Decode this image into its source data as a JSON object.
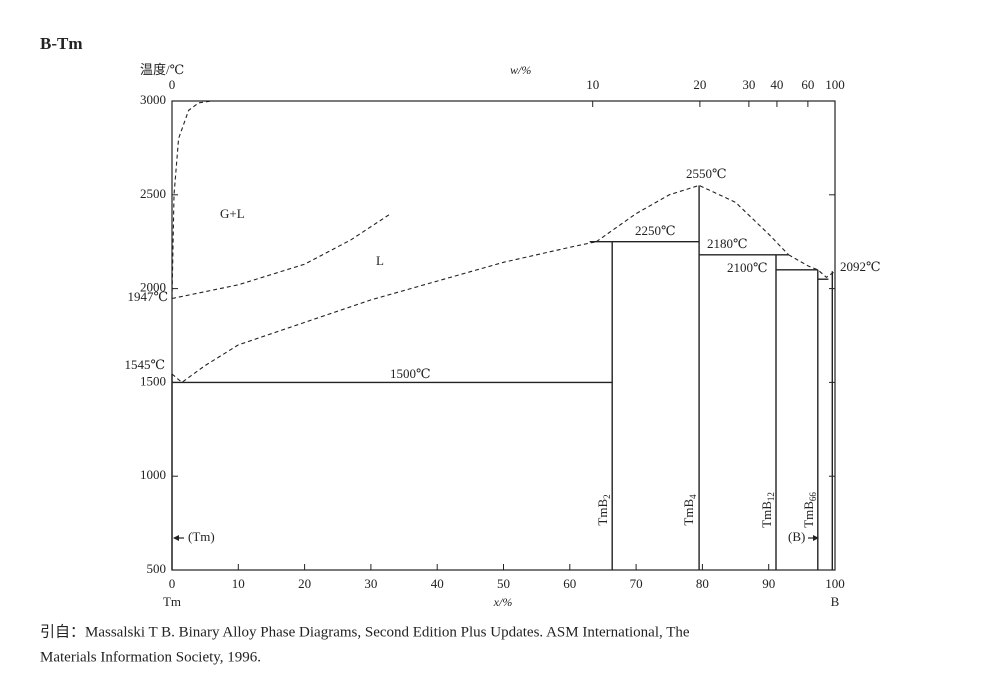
{
  "chart_data": {
    "type": "line",
    "title": "B-Tm",
    "y_label": "温度/℃",
    "x_label": "x/%",
    "top_label": "w/%",
    "x_left_label": "Tm",
    "x_right_label": "B",
    "xlim": [
      0,
      100
    ],
    "ylim": [
      500,
      3000
    ],
    "xticks": [
      0,
      10,
      20,
      30,
      40,
      50,
      60,
      70,
      80,
      90,
      100
    ],
    "yticks": [
      500,
      1000,
      1500,
      2000,
      2500,
      3000
    ],
    "top_xticks": [
      0,
      10,
      20,
      30,
      40,
      60,
      100
    ],
    "color": "#222222",
    "series": [
      {
        "style": "dashed",
        "x": [
          0,
          1.5,
          5,
          10,
          20,
          30,
          40,
          50,
          60,
          64
        ],
        "values": [
          1545,
          1500,
          1590,
          1700,
          1820,
          1940,
          2040,
          2140,
          2220,
          2250
        ]
      },
      {
        "style": "dashed",
        "x": [
          64,
          70,
          75,
          79.5,
          85,
          90,
          93
        ],
        "values": [
          2250,
          2400,
          2500,
          2550,
          2460,
          2290,
          2180
        ]
      },
      {
        "style": "dashed",
        "x": [
          93,
          96,
          97.4,
          98.7,
          100
        ],
        "values": [
          2180,
          2120,
          2100,
          2060,
          2092
        ]
      },
      {
        "style": "dashed",
        "x": [
          0,
          0.3,
          1,
          2.5,
          4,
          6
        ],
        "values": [
          1947,
          2500,
          2800,
          2950,
          2990,
          3000
        ]
      },
      {
        "style": "dashed",
        "x": [
          0,
          10,
          20,
          27,
          33
        ],
        "values": [
          1947,
          2020,
          2130,
          2260,
          2400
        ]
      },
      {
        "style": "solid",
        "x": [
          0,
          66.4
        ],
        "values": [
          1500,
          1500
        ]
      },
      {
        "style": "solid",
        "x": [
          63,
          79.5
        ],
        "values": [
          2250,
          2250
        ]
      },
      {
        "style": "solid",
        "x": [
          79.5,
          93
        ],
        "values": [
          2180,
          2180
        ]
      },
      {
        "style": "solid",
        "x": [
          91.1,
          97.4
        ],
        "values": [
          2100,
          2100
        ]
      },
      {
        "style": "solid",
        "x": [
          97.4,
          99
        ],
        "values": [
          2050,
          2050
        ]
      },
      {
        "style": "solid",
        "x": [
          66.4,
          66.4
        ],
        "values": [
          500,
          2250
        ]
      },
      {
        "style": "solid",
        "x": [
          79.5,
          79.5
        ],
        "values": [
          500,
          2550
        ]
      },
      {
        "style": "solid",
        "x": [
          91.1,
          91.1
        ],
        "values": [
          500,
          2180
        ]
      },
      {
        "style": "solid",
        "x": [
          97.4,
          97.4
        ],
        "values": [
          500,
          2100
        ]
      },
      {
        "style": "solid",
        "x": [
          0,
          0
        ],
        "values": [
          500,
          1545
        ]
      },
      {
        "style": "solid",
        "x": [
          99.6,
          99.6
        ],
        "values": [
          500,
          2092
        ]
      }
    ],
    "phases": [
      {
        "name": "TmB",
        "sub": "2"
      },
      {
        "name": "TmB",
        "sub": "4"
      },
      {
        "name": "TmB",
        "sub": "12"
      },
      {
        "name": "TmB",
        "sub": "66"
      }
    ],
    "annotations": [
      "2550℃",
      "2250℃",
      "2180℃",
      "2100℃",
      "2092℃",
      "1500℃",
      "1947℃",
      "1545℃",
      "G+L",
      "L",
      "(Tm)",
      "(B)"
    ]
  },
  "citation": [
    "引自：Massalski T B. Binary Alloy Phase Diagrams, Second Edition Plus Updates. ASM International, The",
    "Materials Information Society, 1996."
  ]
}
